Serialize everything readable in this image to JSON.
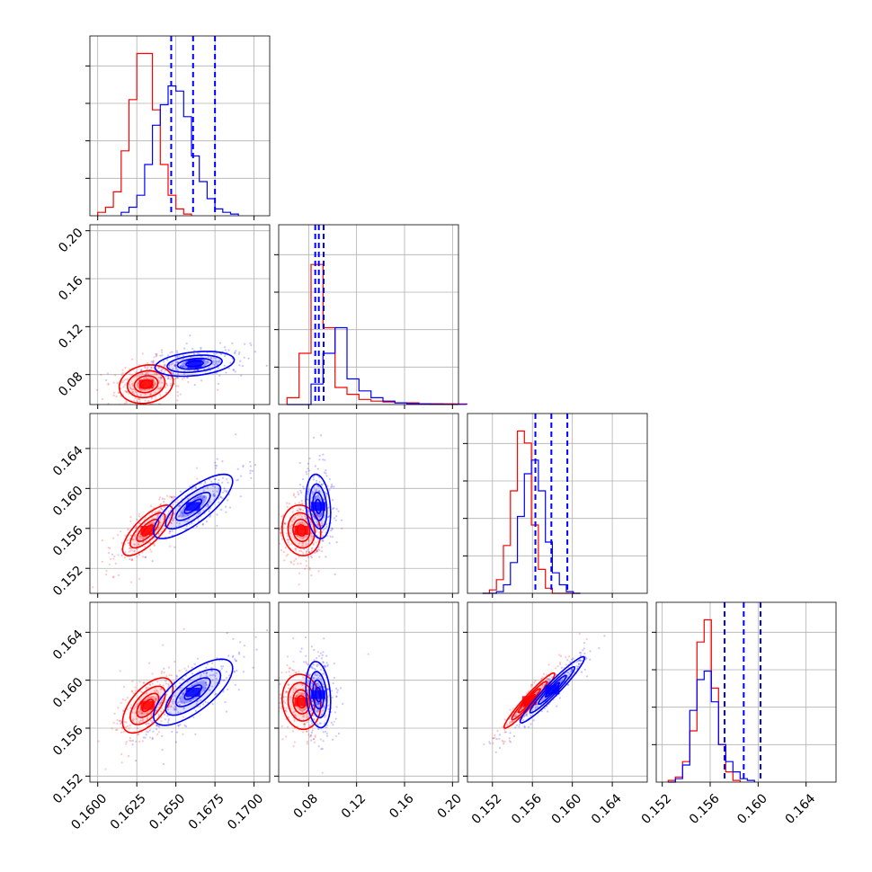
{
  "chart_data": {
    "type": "corner",
    "colors": {
      "red": "#ff0000",
      "blue": "#0000ff",
      "grid": "#b0b0b0"
    },
    "n_params": 4,
    "axes": [
      {
        "range": [
          0.1595,
          0.171
        ],
        "ticks": [
          "0.1600",
          "0.1625",
          "0.1650",
          "0.1675",
          "0.1700"
        ],
        "tick_values": [
          0.16,
          0.1625,
          0.165,
          0.1675,
          0.17
        ]
      },
      {
        "range": [
          0.055,
          0.205
        ],
        "ticks": [
          "0.08",
          "0.12",
          "0.16",
          "0.20"
        ],
        "tick_values": [
          0.08,
          0.12,
          0.16,
          0.2
        ]
      },
      {
        "range": [
          0.1495,
          0.1675
        ],
        "ticks": [
          "0.152",
          "0.156",
          "0.160",
          "0.164"
        ],
        "tick_values": [
          0.152,
          0.156,
          0.16,
          0.164
        ]
      },
      {
        "range": [
          0.1515,
          0.1665
        ],
        "ticks": [
          "0.152",
          "0.156",
          "0.160",
          "0.164"
        ],
        "tick_values": [
          0.152,
          0.156,
          0.16,
          0.164
        ]
      }
    ],
    "marginals": [
      {
        "red": {
          "edges_start": 0.16,
          "bin_width": 0.0005,
          "counts": [
            0.02,
            0.05,
            0.14,
            0.38,
            0.68,
            0.95,
            0.95,
            0.62,
            0.3,
            0.12,
            0.04,
            0.01
          ]
        },
        "blue": {
          "edges_start": 0.1615,
          "bin_width": 0.0005,
          "counts": [
            0.02,
            0.05,
            0.12,
            0.3,
            0.53,
            0.65,
            0.76,
            0.73,
            0.58,
            0.35,
            0.2,
            0.1,
            0.04,
            0.02,
            0.01
          ]
        },
        "quantile_lines": [
          0.1647,
          0.1661,
          0.1675
        ]
      },
      {
        "red": {
          "edges_start": 0.062,
          "bin_width": 0.01,
          "counts": [
            0.04,
            0.3,
            0.82,
            0.45,
            0.1,
            0.06,
            0.03,
            0.02,
            0.015,
            0.01,
            0.01,
            0.005,
            0.005,
            0.004,
            0.003
          ]
        },
        "blue": {
          "edges_start": 0.062,
          "bin_width": 0.01,
          "counts": [
            0.0,
            0.0,
            0.12,
            0.3,
            0.45,
            0.15,
            0.08,
            0.04,
            0.02,
            0.01,
            0.005,
            0.003,
            0.002,
            0.001,
            0.001
          ]
        },
        "quantile_lines": [
          0.0855,
          0.0885,
          0.0925
        ]
      },
      {
        "red": {
          "edges_start": 0.151,
          "bin_width": 0.0007,
          "counts": [
            0.0,
            0.02,
            0.08,
            0.28,
            0.6,
            0.95,
            0.88,
            0.4,
            0.14,
            0.03,
            0.0,
            0.0,
            0.0,
            0.0
          ]
        },
        "blue": {
          "edges_start": 0.151,
          "bin_width": 0.0007,
          "counts": [
            0.0,
            0.0,
            0.01,
            0.05,
            0.18,
            0.45,
            0.7,
            0.78,
            0.6,
            0.3,
            0.12,
            0.05,
            0.01,
            0.0
          ]
        },
        "quantile_lines": [
          0.1563,
          0.1579,
          0.1595
        ]
      },
      {
        "red": {
          "edges_start": 0.1525,
          "bin_width": 0.0006,
          "counts": [
            0.01,
            0.03,
            0.12,
            0.3,
            0.82,
            0.95,
            0.55,
            0.22,
            0.06,
            0.01
          ]
        },
        "blue": {
          "edges_start": 0.1525,
          "bin_width": 0.0006,
          "counts": [
            0.0,
            0.02,
            0.1,
            0.42,
            0.6,
            0.65,
            0.47,
            0.22,
            0.12,
            0.06,
            0.02,
            0.01
          ]
        },
        "quantile_lines": [
          0.1572,
          0.1588,
          0.1602
        ]
      }
    ],
    "pairs": [
      {
        "row": 1,
        "col": 0,
        "red": {
          "cx": 0.1631,
          "cy": 0.072,
          "sx": 0.00075,
          "sy": 0.007,
          "rho": 0.15
        },
        "blue": {
          "cx": 0.1662,
          "cy": 0.089,
          "sx": 0.0011,
          "sy": 0.0045,
          "rho": 0.3
        }
      },
      {
        "row": 2,
        "col": 0,
        "red": {
          "cx": 0.1632,
          "cy": 0.1558,
          "sx": 0.0007,
          "sy": 0.0011,
          "rho": 0.75
        },
        "blue": {
          "cx": 0.1661,
          "cy": 0.1582,
          "sx": 0.0011,
          "sy": 0.0014,
          "rho": 0.78
        }
      },
      {
        "row": 2,
        "col": 1,
        "red": {
          "cx": 0.074,
          "cy": 0.1558,
          "sx": 0.007,
          "sy": 0.0011,
          "rho": -0.1
        },
        "blue": {
          "cx": 0.088,
          "cy": 0.1582,
          "sx": 0.0045,
          "sy": 0.0014,
          "rho": -0.2
        }
      },
      {
        "row": 3,
        "col": 0,
        "red": {
          "cx": 0.1632,
          "cy": 0.1579,
          "sx": 0.0007,
          "sy": 0.001,
          "rho": 0.6
        },
        "blue": {
          "cx": 0.1661,
          "cy": 0.159,
          "sx": 0.0011,
          "sy": 0.0012,
          "rho": 0.72
        }
      },
      {
        "row": 3,
        "col": 1,
        "red": {
          "cx": 0.074,
          "cy": 0.1582,
          "sx": 0.007,
          "sy": 0.001,
          "rho": -0.1
        },
        "blue": {
          "cx": 0.088,
          "cy": 0.1588,
          "sx": 0.0045,
          "sy": 0.0012,
          "rho": -0.2
        }
      },
      {
        "row": 3,
        "col": 2,
        "red": {
          "cx": 0.1557,
          "cy": 0.1583,
          "sx": 0.0011,
          "sy": 0.001,
          "rho": 0.96
        },
        "blue": {
          "cx": 0.158,
          "cy": 0.1592,
          "sx": 0.0014,
          "sy": 0.0012,
          "rho": 0.96
        }
      }
    ],
    "grid": true
  }
}
